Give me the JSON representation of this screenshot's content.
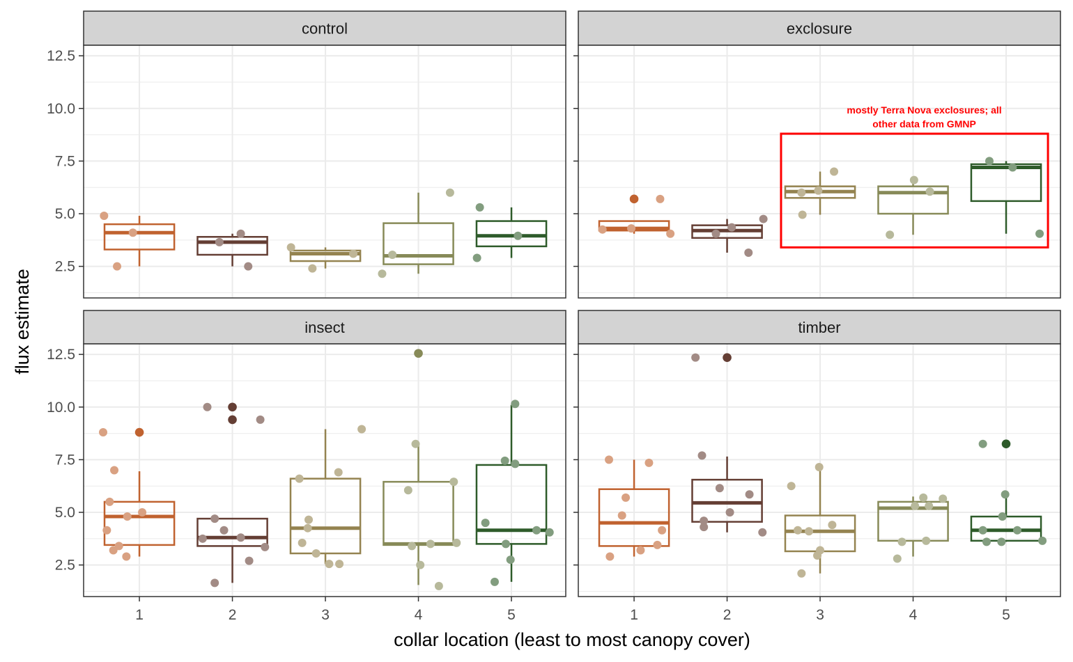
{
  "chart_data": {
    "type": "boxplot",
    "facet_layout": "2x2 grid",
    "xlabel": "collar location (least to most canopy cover)",
    "ylabel": "flux estimate",
    "x_categories": [
      "1",
      "2",
      "3",
      "4",
      "5"
    ],
    "ylim": [
      1.0,
      13.0
    ],
    "y_ticks": [
      2.5,
      5.0,
      7.5,
      10.0,
      12.5
    ],
    "y_tick_labels": [
      "2.5",
      "5.0",
      "7.5",
      "10.0",
      "12.5"
    ],
    "grid": true,
    "legend": "none",
    "colors": {
      "1": "#c0622f",
      "2": "#643e34",
      "3": "#948350",
      "4": "#878a58",
      "5": "#2e5b2a"
    },
    "annotation_color": "#ff0000",
    "panels": [
      {
        "name": "control",
        "boxes": [
          {
            "x": "1",
            "q1": 3.3,
            "median": 4.1,
            "q3": 4.5,
            "whisker_low": 2.5,
            "whisker_high": 4.9,
            "outliers": []
          },
          {
            "x": "2",
            "q1": 3.05,
            "median": 3.65,
            "q3": 3.9,
            "whisker_low": 2.5,
            "whisker_high": 4.05,
            "outliers": []
          },
          {
            "x": "3",
            "q1": 2.75,
            "median": 3.1,
            "q3": 3.25,
            "whisker_low": 2.4,
            "whisker_high": 3.4,
            "outliers": []
          },
          {
            "x": "4",
            "q1": 2.6,
            "median": 3.0,
            "q3": 4.55,
            "whisker_low": 2.15,
            "whisker_high": 6.0,
            "outliers": []
          },
          {
            "x": "5",
            "q1": 3.45,
            "median": 3.95,
            "q3": 4.65,
            "whisker_low": 2.9,
            "whisker_high": 5.3,
            "outliers": []
          }
        ],
        "points": [
          {
            "x": "1",
            "dx": -0.38,
            "y": 4.9
          },
          {
            "x": "1",
            "dx": -0.24,
            "y": 2.5
          },
          {
            "x": "1",
            "dx": -0.07,
            "y": 4.1
          },
          {
            "x": "2",
            "dx": -0.14,
            "y": 3.65
          },
          {
            "x": "2",
            "dx": 0.09,
            "y": 4.05
          },
          {
            "x": "2",
            "dx": 0.17,
            "y": 2.5
          },
          {
            "x": "3",
            "dx": -0.37,
            "y": 3.4
          },
          {
            "x": "3",
            "dx": -0.14,
            "y": 2.4
          },
          {
            "x": "3",
            "dx": 0.3,
            "y": 3.1
          },
          {
            "x": "4",
            "dx": -0.39,
            "y": 2.15
          },
          {
            "x": "4",
            "dx": -0.28,
            "y": 3.05
          },
          {
            "x": "4",
            "dx": 0.34,
            "y": 6.0
          },
          {
            "x": "5",
            "dx": -0.37,
            "y": 2.9
          },
          {
            "x": "5",
            "dx": -0.34,
            "y": 5.3
          },
          {
            "x": "5",
            "dx": 0.07,
            "y": 3.95
          }
        ]
      },
      {
        "name": "exclosure",
        "boxes": [
          {
            "x": "1",
            "q1": 4.2,
            "median": 4.3,
            "q3": 4.65,
            "whisker_low": 4.05,
            "whisker_high": 4.65,
            "outliers": [
              5.7
            ]
          },
          {
            "x": "2",
            "q1": 3.85,
            "median": 4.2,
            "q3": 4.45,
            "whisker_low": 3.15,
            "whisker_high": 4.75,
            "outliers": []
          },
          {
            "x": "3",
            "q1": 5.75,
            "median": 6.05,
            "q3": 6.3,
            "whisker_low": 4.95,
            "whisker_high": 7.0,
            "outliers": []
          },
          {
            "x": "4",
            "q1": 5.0,
            "median": 6.0,
            "q3": 6.3,
            "whisker_low": 4.0,
            "whisker_high": 6.6,
            "outliers": []
          },
          {
            "x": "5",
            "q1": 5.6,
            "median": 7.2,
            "q3": 7.35,
            "whisker_low": 4.05,
            "whisker_high": 7.5,
            "outliers": []
          }
        ],
        "points": [
          {
            "x": "1",
            "dx": -0.34,
            "y": 4.25
          },
          {
            "x": "1",
            "dx": -0.03,
            "y": 4.3
          },
          {
            "x": "1",
            "dx": 0.28,
            "y": 5.7
          },
          {
            "x": "1",
            "dx": 0.39,
            "y": 4.05
          },
          {
            "x": "2",
            "dx": -0.12,
            "y": 4.05
          },
          {
            "x": "2",
            "dx": 0.05,
            "y": 4.35
          },
          {
            "x": "2",
            "dx": 0.23,
            "y": 3.15
          },
          {
            "x": "2",
            "dx": 0.39,
            "y": 4.75
          },
          {
            "x": "3",
            "dx": -0.2,
            "y": 6.0
          },
          {
            "x": "3",
            "dx": -0.19,
            "y": 4.95
          },
          {
            "x": "3",
            "dx": -0.02,
            "y": 6.1
          },
          {
            "x": "3",
            "dx": 0.15,
            "y": 7.0
          },
          {
            "x": "4",
            "dx": -0.25,
            "y": 4.0
          },
          {
            "x": "4",
            "dx": 0.01,
            "y": 6.6
          },
          {
            "x": "4",
            "dx": 0.18,
            "y": 6.05
          },
          {
            "x": "5",
            "dx": -0.18,
            "y": 7.5
          },
          {
            "x": "5",
            "dx": 0.07,
            "y": 7.2
          },
          {
            "x": "5",
            "dx": 0.36,
            "y": 4.05
          }
        ],
        "annotation": {
          "text_lines": [
            "mostly Terra Nova exclosures; all",
            "other data from GMNP"
          ],
          "x_range": [
            "3",
            "5"
          ],
          "y_range": [
            3.4,
            8.8
          ]
        }
      },
      {
        "name": "insect",
        "boxes": [
          {
            "x": "1",
            "q1": 3.45,
            "median": 4.8,
            "q3": 5.5,
            "whisker_low": 2.9,
            "whisker_high": 6.95,
            "outliers": [
              8.8
            ]
          },
          {
            "x": "2",
            "q1": 3.4,
            "median": 3.8,
            "q3": 4.7,
            "whisker_low": 1.65,
            "whisker_high": 4.7,
            "outliers": [
              10.0,
              9.4
            ]
          },
          {
            "x": "3",
            "q1": 3.05,
            "median": 4.25,
            "q3": 6.6,
            "whisker_low": 2.55,
            "whisker_high": 8.95,
            "outliers": []
          },
          {
            "x": "4",
            "q1": 3.45,
            "median": 3.5,
            "q3": 6.45,
            "whisker_low": 1.55,
            "whisker_high": 8.25,
            "outliers": [
              12.55
            ]
          },
          {
            "x": "5",
            "q1": 3.5,
            "median": 4.15,
            "q3": 7.25,
            "whisker_low": 1.7,
            "whisker_high": 10.1,
            "outliers": []
          }
        ],
        "points": [
          {
            "x": "1",
            "dx": -0.39,
            "y": 8.8
          },
          {
            "x": "1",
            "dx": -0.32,
            "y": 5.5
          },
          {
            "x": "1",
            "dx": -0.35,
            "y": 4.15
          },
          {
            "x": "1",
            "dx": -0.27,
            "y": 7.0
          },
          {
            "x": "1",
            "dx": -0.28,
            "y": 3.2
          },
          {
            "x": "1",
            "dx": -0.22,
            "y": 3.4
          },
          {
            "x": "1",
            "dx": -0.14,
            "y": 2.9
          },
          {
            "x": "1",
            "dx": -0.13,
            "y": 4.8
          },
          {
            "x": "1",
            "dx": 0.03,
            "y": 5.0
          },
          {
            "x": "2",
            "dx": -0.27,
            "y": 10.0
          },
          {
            "x": "2",
            "dx": -0.32,
            "y": 3.75
          },
          {
            "x": "2",
            "dx": -0.19,
            "y": 1.65
          },
          {
            "x": "2",
            "dx": -0.19,
            "y": 4.7
          },
          {
            "x": "2",
            "dx": -0.09,
            "y": 4.15
          },
          {
            "x": "2",
            "dx": 0.09,
            "y": 3.8
          },
          {
            "x": "2",
            "dx": 0.18,
            "y": 2.7
          },
          {
            "x": "2",
            "dx": 0.3,
            "y": 9.4
          },
          {
            "x": "2",
            "dx": 0.35,
            "y": 3.35
          },
          {
            "x": "3",
            "dx": -0.28,
            "y": 6.6
          },
          {
            "x": "3",
            "dx": -0.25,
            "y": 3.55
          },
          {
            "x": "3",
            "dx": -0.18,
            "y": 4.65
          },
          {
            "x": "3",
            "dx": -0.1,
            "y": 3.05
          },
          {
            "x": "3",
            "dx": -0.19,
            "y": 4.25
          },
          {
            "x": "3",
            "dx": 0.04,
            "y": 2.55
          },
          {
            "x": "3",
            "dx": 0.15,
            "y": 2.55
          },
          {
            "x": "3",
            "dx": 0.14,
            "y": 6.9
          },
          {
            "x": "3",
            "dx": 0.39,
            "y": 8.95
          },
          {
            "x": "4",
            "dx": -0.11,
            "y": 6.05
          },
          {
            "x": "4",
            "dx": -0.07,
            "y": 3.4
          },
          {
            "x": "4",
            "dx": -0.03,
            "y": 8.25
          },
          {
            "x": "4",
            "dx": 0.02,
            "y": 2.5
          },
          {
            "x": "4",
            "dx": 0.13,
            "y": 3.5
          },
          {
            "x": "4",
            "dx": 0.22,
            "y": 1.5
          },
          {
            "x": "4",
            "dx": 0.38,
            "y": 6.45
          },
          {
            "x": "4",
            "dx": 0.41,
            "y": 3.55
          },
          {
            "x": "5",
            "dx": -0.28,
            "y": 4.5
          },
          {
            "x": "5",
            "dx": -0.18,
            "y": 1.7
          },
          {
            "x": "5",
            "dx": -0.07,
            "y": 7.45
          },
          {
            "x": "5",
            "dx": -0.06,
            "y": 3.5
          },
          {
            "x": "5",
            "dx": -0.01,
            "y": 2.75
          },
          {
            "x": "5",
            "dx": 0.04,
            "y": 7.3
          },
          {
            "x": "5",
            "dx": 0.04,
            "y": 10.15
          },
          {
            "x": "5",
            "dx": 0.27,
            "y": 4.15
          },
          {
            "x": "5",
            "dx": 0.41,
            "y": 4.05
          }
        ]
      },
      {
        "name": "timber",
        "boxes": [
          {
            "x": "1",
            "q1": 3.4,
            "median": 4.5,
            "q3": 6.1,
            "whisker_low": 2.9,
            "whisker_high": 7.5,
            "outliers": []
          },
          {
            "x": "2",
            "q1": 4.55,
            "median": 5.45,
            "q3": 6.55,
            "whisker_low": 4.05,
            "whisker_high": 7.65,
            "outliers": [
              12.35
            ]
          },
          {
            "x": "3",
            "q1": 3.15,
            "median": 4.1,
            "q3": 4.85,
            "whisker_low": 2.1,
            "whisker_high": 7.1,
            "outliers": []
          },
          {
            "x": "4",
            "q1": 3.65,
            "median": 5.2,
            "q3": 5.5,
            "whisker_low": 2.9,
            "whisker_high": 5.75,
            "outliers": []
          },
          {
            "x": "5",
            "q1": 3.65,
            "median": 4.15,
            "q3": 4.8,
            "whisker_low": 3.6,
            "whisker_high": 5.85,
            "outliers": [
              8.25
            ]
          }
        ],
        "points": [
          {
            "x": "1",
            "dx": -0.27,
            "y": 7.5
          },
          {
            "x": "1",
            "dx": -0.26,
            "y": 2.9
          },
          {
            "x": "1",
            "dx": -0.13,
            "y": 4.85
          },
          {
            "x": "1",
            "dx": -0.09,
            "y": 5.7
          },
          {
            "x": "1",
            "dx": 0.07,
            "y": 3.2
          },
          {
            "x": "1",
            "dx": 0.16,
            "y": 7.35
          },
          {
            "x": "1",
            "dx": 0.25,
            "y": 3.45
          },
          {
            "x": "1",
            "dx": 0.3,
            "y": 4.15
          },
          {
            "x": "2",
            "dx": -0.34,
            "y": 12.35
          },
          {
            "x": "2",
            "dx": -0.27,
            "y": 7.7
          },
          {
            "x": "2",
            "dx": -0.25,
            "y": 4.3
          },
          {
            "x": "2",
            "dx": -0.25,
            "y": 4.6
          },
          {
            "x": "2",
            "dx": -0.08,
            "y": 6.15
          },
          {
            "x": "2",
            "dx": 0.03,
            "y": 5.0
          },
          {
            "x": "2",
            "dx": 0.24,
            "y": 5.85
          },
          {
            "x": "2",
            "dx": 0.38,
            "y": 4.05
          },
          {
            "x": "3",
            "dx": -0.31,
            "y": 6.25
          },
          {
            "x": "3",
            "dx": -0.24,
            "y": 4.15
          },
          {
            "x": "3",
            "dx": -0.2,
            "y": 2.1
          },
          {
            "x": "3",
            "dx": -0.12,
            "y": 4.1
          },
          {
            "x": "3",
            "dx": -0.03,
            "y": 2.95
          },
          {
            "x": "3",
            "dx": 0.0,
            "y": 3.2
          },
          {
            "x": "3",
            "dx": -0.01,
            "y": 7.15
          },
          {
            "x": "3",
            "dx": 0.13,
            "y": 4.4
          },
          {
            "x": "4",
            "dx": -0.17,
            "y": 2.8
          },
          {
            "x": "4",
            "dx": -0.12,
            "y": 3.6
          },
          {
            "x": "4",
            "dx": 0.02,
            "y": 5.3
          },
          {
            "x": "4",
            "dx": 0.11,
            "y": 5.7
          },
          {
            "x": "4",
            "dx": 0.14,
            "y": 3.65
          },
          {
            "x": "4",
            "dx": 0.17,
            "y": 5.3
          },
          {
            "x": "4",
            "dx": 0.32,
            "y": 5.65
          },
          {
            "x": "5",
            "dx": -0.25,
            "y": 4.15
          },
          {
            "x": "5",
            "dx": -0.25,
            "y": 8.25
          },
          {
            "x": "5",
            "dx": -0.21,
            "y": 3.6
          },
          {
            "x": "5",
            "dx": -0.04,
            "y": 4.8
          },
          {
            "x": "5",
            "dx": -0.05,
            "y": 3.6
          },
          {
            "x": "5",
            "dx": -0.01,
            "y": 5.85
          },
          {
            "x": "5",
            "dx": 0.12,
            "y": 4.15
          },
          {
            "x": "5",
            "dx": 0.39,
            "y": 3.65
          }
        ]
      }
    ]
  }
}
